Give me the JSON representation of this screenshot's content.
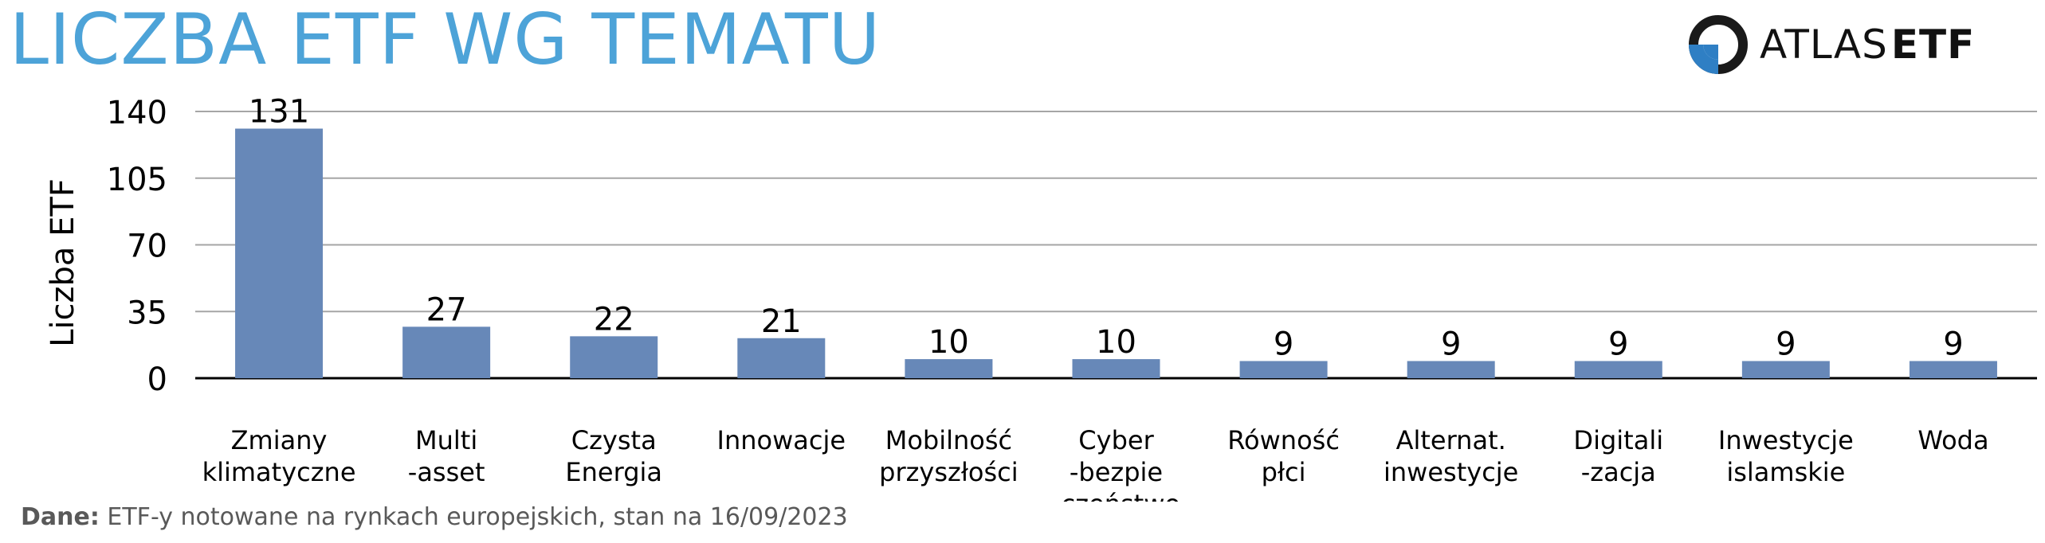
{
  "header": {
    "title": "LICZBA ETF WG TEMATU",
    "logo_text_main": "ATLAS",
    "logo_text_bold": "ETF"
  },
  "footer": {
    "label": "Dane:",
    "text": "ETF-y notowane na rynkach europejskich, stan na 16/09/2023"
  },
  "colors": {
    "title": "#4da3d8",
    "bar": "#6788b8",
    "logo_blue": "#2f7fc4"
  },
  "chart_data": {
    "type": "bar",
    "title": "LICZBA ETF WG TEMATU",
    "xlabel": "",
    "ylabel": "Liczba ETF",
    "ylim": [
      0,
      140
    ],
    "yticks": [
      0,
      35,
      70,
      105,
      140
    ],
    "grid": true,
    "categories": [
      [
        "Zmiany",
        "klimatyczne"
      ],
      [
        "Multi",
        "-asset"
      ],
      [
        "Czysta",
        "Energia"
      ],
      [
        "Innowacje"
      ],
      [
        "Mobilność",
        "przyszłości"
      ],
      [
        "Cyber",
        "-bezpie",
        "-czeństwo"
      ],
      [
        "Równość",
        "płci"
      ],
      [
        "Alternat.",
        "inwestycje"
      ],
      [
        "Digitali",
        "-zacja"
      ],
      [
        "Inwestycje",
        "islamskie"
      ],
      [
        "Woda"
      ]
    ],
    "values": [
      131,
      27,
      22,
      21,
      10,
      10,
      9,
      9,
      9,
      9,
      9
    ]
  }
}
